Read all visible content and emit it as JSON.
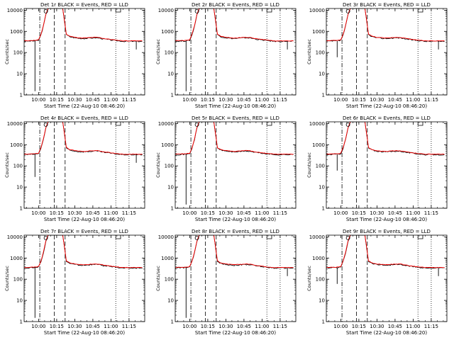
{
  "chart_data": [
    {
      "type": "line",
      "title": "Det 1r BLACK = Events, RED = LLD",
      "detector": "1r",
      "spike": "long",
      "tail_drop": true
    },
    {
      "type": "line",
      "title": "Det 2r BLACK = Events, RED = LLD",
      "detector": "2r",
      "spike": "long",
      "tail_drop": true
    },
    {
      "type": "line",
      "title": "Det 3r BLACK = Events, RED = LLD",
      "detector": "3r",
      "spike": "short",
      "tail_drop": true
    },
    {
      "type": "line",
      "title": "Det 4r BLACK = Events, RED = LLD",
      "detector": "4r",
      "spike": "medium",
      "tail_drop": true
    },
    {
      "type": "line",
      "title": "Det 5r BLACK = Events, RED = LLD",
      "detector": "5r",
      "spike": "long",
      "tail_drop": false
    },
    {
      "type": "line",
      "title": "Det 6r BLACK = Events, RED = LLD",
      "detector": "6r",
      "spike": "short",
      "tail_drop": false
    },
    {
      "type": "line",
      "title": "Det 7r BLACK = Events, RED = LLD",
      "detector": "7r",
      "spike": "long",
      "tail_drop": false
    },
    {
      "type": "line",
      "title": "Det 8r BLACK = Events, RED = LLD",
      "detector": "8r",
      "spike": "long",
      "tail_drop": true
    },
    {
      "type": "line",
      "title": "Det 9r BLACK = Events, RED = LLD",
      "detector": "9r",
      "spike": "short",
      "tail_drop": true
    }
  ],
  "common": {
    "xlabel": "Start Time (22-Aug-10 08:46:20)",
    "ylabel": "Counts/sec",
    "x_ticks": [
      "10:00",
      "10:15",
      "10:30",
      "10:45",
      "11:00",
      "11:15"
    ],
    "x_tick_minutes": [
      0,
      15,
      30,
      45,
      60,
      75
    ],
    "xlim_minutes": [
      -12,
      88
    ],
    "y_ticks": [
      "1",
      "10",
      "100",
      "1000",
      "10000"
    ],
    "y_tick_values": [
      1,
      10,
      100,
      1000,
      10000
    ],
    "ylim": [
      1,
      12000
    ],
    "dashdot_lines_minutes": [
      1
    ],
    "dashed_lines_minutes": [
      13,
      22
    ],
    "dotted_lines_minutes": [
      64,
      75
    ],
    "series": [
      {
        "name": "Events",
        "color": "#000000"
      },
      {
        "name": "LLD",
        "color": "#ff0000"
      }
    ],
    "profile_minutes": [
      -12,
      -2,
      0,
      2,
      4,
      6,
      8,
      10,
      13,
      16,
      20,
      21.5,
      23,
      26,
      30,
      36,
      40,
      46,
      50,
      54,
      58,
      62,
      66,
      70,
      76,
      82,
      86
    ],
    "profile_values": [
      340,
      360,
      380,
      700,
      1800,
      6000,
      12000,
      12000,
      12000,
      12000,
      12000,
      3000,
      700,
      560,
      500,
      460,
      470,
      500,
      490,
      440,
      410,
      380,
      360,
      340,
      340,
      340,
      340
    ]
  }
}
